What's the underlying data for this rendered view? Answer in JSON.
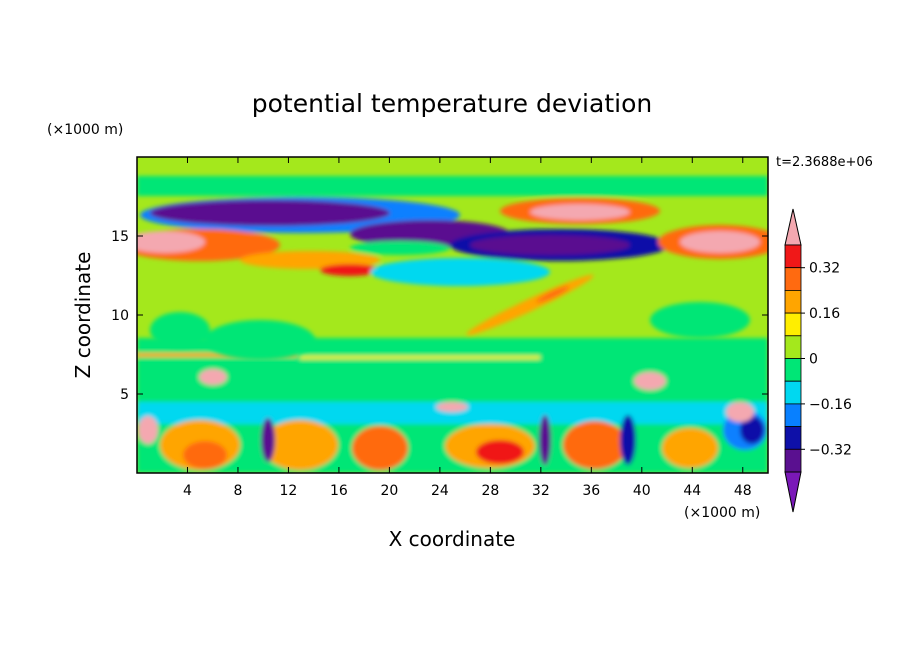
{
  "chart_data": {
    "type": "heatmap",
    "subtype": "filled-contour",
    "title": "potential temperature deviation",
    "xlabel": "X coordinate",
    "ylabel": "Z coordinate",
    "x_unit": "(×1000 m)",
    "y_unit": "(×1000 m)",
    "time_label": "t=2.3688e+06",
    "xlim": [
      0,
      50
    ],
    "ylim": [
      0,
      20
    ],
    "x_ticks": [
      4,
      8,
      12,
      16,
      20,
      24,
      28,
      32,
      36,
      40,
      44,
      48
    ],
    "y_ticks": [
      5,
      10,
      15
    ],
    "colorbar": {
      "levels": [
        -0.4,
        -0.32,
        -0.24,
        -0.16,
        -0.08,
        0,
        0.08,
        0.16,
        0.24,
        0.32,
        0.4
      ],
      "tick_values": [
        0.32,
        0.16,
        0,
        -0.16,
        -0.32
      ],
      "tick_labels": [
        "0.32",
        "0.16",
        "0",
        "−0.16",
        "−0.32"
      ],
      "colors_top_to_bottom": [
        "#f4a8b0",
        "#f01818",
        "#ff6a10",
        "#ffa500",
        "#ffee00",
        "#a4e81c",
        "#00e676",
        "#00d8f0",
        "#0880ff",
        "#0e10a8",
        "#5a1090",
        "#7a18b8"
      ],
      "extend": "both"
    },
    "features": [
      {
        "label": "upper negative band",
        "x": [
          2,
          48
        ],
        "z": [
          14.5,
          16.8
        ],
        "value": -0.36
      },
      {
        "label": "upper positive band",
        "x": [
          0,
          50
        ],
        "z": [
          13.5,
          15.5
        ],
        "value": 0.34
      },
      {
        "label": "tilted positive streak",
        "x": [
          24,
          38
        ],
        "z": [
          9,
          12
        ],
        "value": 0.2
      },
      {
        "label": "lower layer cells",
        "x": [
          0,
          50
        ],
        "z": [
          0,
          7
        ],
        "value": "mixed ±0.4"
      }
    ]
  }
}
